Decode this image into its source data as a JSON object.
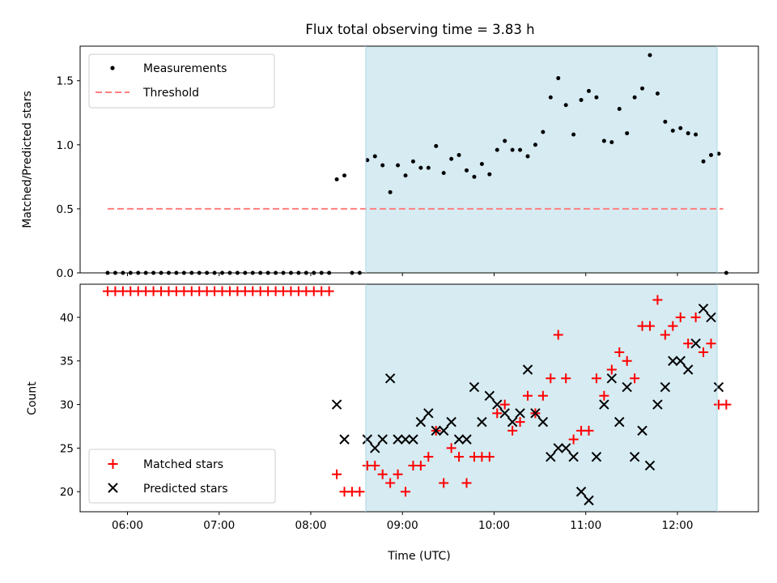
{
  "title": "Flux total observing time = 3.83 h",
  "xlabel": "Time (UTC)",
  "x_ticks": [
    "06:00",
    "07:00",
    "08:00",
    "09:00",
    "10:00",
    "11:00",
    "12:00"
  ],
  "x_tick_values": [
    6.0,
    7.0,
    8.0,
    9.0,
    10.0,
    11.0,
    12.0
  ],
  "x_range": [
    "05:29",
    "12:53"
  ],
  "shaded_interval": [
    "08:36",
    "12:26"
  ],
  "shaded_color": "#add8e6",
  "chart_data": [
    {
      "type": "scatter",
      "ylabel": "Matched/Predicted stars",
      "ylim": [
        0,
        1.77
      ],
      "y_ticks": [
        0.0,
        0.5,
        1.0,
        1.5
      ],
      "y_tick_labels": [
        "0.0",
        "0.5",
        "1.0",
        "1.5"
      ],
      "legend_position": "upper left",
      "threshold": {
        "name": "Threshold",
        "value": 0.5,
        "x_start": "05:47",
        "x_end": "12:30",
        "color": "#ff7f7f"
      },
      "series": [
        {
          "name": "Measurements",
          "marker": "dot",
          "color": "#000000",
          "points": [
            [
              "05:47",
              0
            ],
            [
              "05:52",
              0
            ],
            [
              "05:57",
              0
            ],
            [
              "06:02",
              0
            ],
            [
              "06:07",
              0
            ],
            [
              "06:12",
              0
            ],
            [
              "06:17",
              0
            ],
            [
              "06:22",
              0
            ],
            [
              "06:27",
              0
            ],
            [
              "06:32",
              0
            ],
            [
              "06:37",
              0
            ],
            [
              "06:42",
              0
            ],
            [
              "06:47",
              0
            ],
            [
              "06:52",
              0
            ],
            [
              "06:57",
              0
            ],
            [
              "07:02",
              0
            ],
            [
              "07:07",
              0
            ],
            [
              "07:12",
              0
            ],
            [
              "07:17",
              0
            ],
            [
              "07:22",
              0
            ],
            [
              "07:27",
              0
            ],
            [
              "07:32",
              0
            ],
            [
              "07:37",
              0
            ],
            [
              "07:42",
              0
            ],
            [
              "07:47",
              0
            ],
            [
              "07:52",
              0
            ],
            [
              "07:57",
              0
            ],
            [
              "08:02",
              0
            ],
            [
              "08:07",
              0
            ],
            [
              "08:12",
              0
            ],
            [
              "08:17",
              0.73
            ],
            [
              "08:22",
              0.76
            ],
            [
              "08:27",
              0
            ],
            [
              "08:32",
              0
            ],
            [
              "08:37",
              0.88
            ],
            [
              "08:42",
              0.91
            ],
            [
              "08:47",
              0.84
            ],
            [
              "08:52",
              0.63
            ],
            [
              "08:57",
              0.84
            ],
            [
              "09:02",
              0.76
            ],
            [
              "09:07",
              0.87
            ],
            [
              "09:12",
              0.82
            ],
            [
              "09:17",
              0.82
            ],
            [
              "09:22",
              0.99
            ],
            [
              "09:27",
              0.78
            ],
            [
              "09:32",
              0.89
            ],
            [
              "09:37",
              0.92
            ],
            [
              "09:42",
              0.8
            ],
            [
              "09:47",
              0.75
            ],
            [
              "09:52",
              0.85
            ],
            [
              "09:57",
              0.77
            ],
            [
              "10:02",
              0.96
            ],
            [
              "10:07",
              1.03
            ],
            [
              "10:12",
              0.96
            ],
            [
              "10:17",
              0.96
            ],
            [
              "10:22",
              0.91
            ],
            [
              "10:27",
              1.0
            ],
            [
              "10:32",
              1.1
            ],
            [
              "10:37",
              1.37
            ],
            [
              "10:42",
              1.52
            ],
            [
              "10:47",
              1.31
            ],
            [
              "10:52",
              1.08
            ],
            [
              "10:57",
              1.35
            ],
            [
              "11:02",
              1.42
            ],
            [
              "11:07",
              1.37
            ],
            [
              "11:12",
              1.03
            ],
            [
              "11:17",
              1.02
            ],
            [
              "11:22",
              1.28
            ],
            [
              "11:27",
              1.09
            ],
            [
              "11:32",
              1.37
            ],
            [
              "11:37",
              1.44
            ],
            [
              "11:42",
              1.7
            ],
            [
              "11:47",
              1.4
            ],
            [
              "11:52",
              1.18
            ],
            [
              "11:57",
              1.11
            ],
            [
              "12:02",
              1.13
            ],
            [
              "12:07",
              1.09
            ],
            [
              "12:12",
              1.08
            ],
            [
              "12:17",
              0.87
            ],
            [
              "12:22",
              0.92
            ],
            [
              "12:27",
              0.93
            ],
            [
              "12:32",
              0
            ]
          ]
        }
      ]
    },
    {
      "type": "scatter",
      "ylabel": "Count",
      "ylim": [
        17.7,
        43.8
      ],
      "y_ticks": [
        20,
        25,
        30,
        35,
        40
      ],
      "y_tick_labels": [
        "20",
        "25",
        "30",
        "35",
        "40"
      ],
      "legend_position": "lower left",
      "series": [
        {
          "name": "Matched stars",
          "marker": "plus",
          "color": "#ff0000",
          "points": [
            [
              "05:47",
              43
            ],
            [
              "05:52",
              43
            ],
            [
              "05:57",
              43
            ],
            [
              "06:02",
              43
            ],
            [
              "06:07",
              43
            ],
            [
              "06:12",
              43
            ],
            [
              "06:17",
              43
            ],
            [
              "06:22",
              43
            ],
            [
              "06:27",
              43
            ],
            [
              "06:32",
              43
            ],
            [
              "06:37",
              43
            ],
            [
              "06:42",
              43
            ],
            [
              "06:47",
              43
            ],
            [
              "06:52",
              43
            ],
            [
              "06:57",
              43
            ],
            [
              "07:02",
              43
            ],
            [
              "07:07",
              43
            ],
            [
              "07:12",
              43
            ],
            [
              "07:17",
              43
            ],
            [
              "07:22",
              43
            ],
            [
              "07:27",
              43
            ],
            [
              "07:32",
              43
            ],
            [
              "07:37",
              43
            ],
            [
              "07:42",
              43
            ],
            [
              "07:47",
              43
            ],
            [
              "07:52",
              43
            ],
            [
              "07:57",
              43
            ],
            [
              "08:02",
              43
            ],
            [
              "08:07",
              43
            ],
            [
              "08:12",
              43
            ],
            [
              "08:17",
              22
            ],
            [
              "08:22",
              20
            ],
            [
              "08:27",
              20
            ],
            [
              "08:32",
              20
            ],
            [
              "08:37",
              23
            ],
            [
              "08:42",
              23
            ],
            [
              "08:47",
              22
            ],
            [
              "08:52",
              21
            ],
            [
              "08:57",
              22
            ],
            [
              "09:02",
              20
            ],
            [
              "09:07",
              23
            ],
            [
              "09:12",
              23
            ],
            [
              "09:17",
              24
            ],
            [
              "09:22",
              27
            ],
            [
              "09:27",
              21
            ],
            [
              "09:32",
              25
            ],
            [
              "09:37",
              24
            ],
            [
              "09:42",
              21
            ],
            [
              "09:47",
              24
            ],
            [
              "09:52",
              24
            ],
            [
              "09:57",
              24
            ],
            [
              "10:02",
              29
            ],
            [
              "10:07",
              30
            ],
            [
              "10:12",
              27
            ],
            [
              "10:17",
              28
            ],
            [
              "10:22",
              31
            ],
            [
              "10:27",
              29
            ],
            [
              "10:32",
              31
            ],
            [
              "10:37",
              33
            ],
            [
              "10:42",
              38
            ],
            [
              "10:47",
              33
            ],
            [
              "10:52",
              26
            ],
            [
              "10:57",
              27
            ],
            [
              "11:02",
              27
            ],
            [
              "11:07",
              33
            ],
            [
              "11:12",
              31
            ],
            [
              "11:17",
              34
            ],
            [
              "11:22",
              36
            ],
            [
              "11:27",
              35
            ],
            [
              "11:32",
              33
            ],
            [
              "11:37",
              39
            ],
            [
              "11:42",
              39
            ],
            [
              "11:47",
              42
            ],
            [
              "11:52",
              38
            ],
            [
              "11:57",
              39
            ],
            [
              "12:02",
              40
            ],
            [
              "12:07",
              37
            ],
            [
              "12:12",
              40
            ],
            [
              "12:17",
              36
            ],
            [
              "12:22",
              37
            ],
            [
              "12:27",
              30
            ],
            [
              "12:32",
              30
            ]
          ]
        },
        {
          "name": "Predicted stars",
          "marker": "x",
          "color": "#000000",
          "points": [
            [
              "08:17",
              30
            ],
            [
              "08:22",
              26
            ],
            [
              "08:37",
              26
            ],
            [
              "08:42",
              25
            ],
            [
              "08:47",
              26
            ],
            [
              "08:52",
              33
            ],
            [
              "08:57",
              26
            ],
            [
              "09:02",
              26
            ],
            [
              "09:07",
              26
            ],
            [
              "09:12",
              28
            ],
            [
              "09:17",
              29
            ],
            [
              "09:22",
              27
            ],
            [
              "09:27",
              27
            ],
            [
              "09:32",
              28
            ],
            [
              "09:37",
              26
            ],
            [
              "09:42",
              26
            ],
            [
              "09:47",
              32
            ],
            [
              "09:52",
              28
            ],
            [
              "09:57",
              31
            ],
            [
              "10:02",
              30
            ],
            [
              "10:07",
              29
            ],
            [
              "10:12",
              28
            ],
            [
              "10:17",
              29
            ],
            [
              "10:22",
              34
            ],
            [
              "10:27",
              29
            ],
            [
              "10:32",
              28
            ],
            [
              "10:37",
              24
            ],
            [
              "10:42",
              25
            ],
            [
              "10:47",
              25
            ],
            [
              "10:52",
              24
            ],
            [
              "10:57",
              20
            ],
            [
              "11:02",
              19
            ],
            [
              "11:07",
              24
            ],
            [
              "11:12",
              30
            ],
            [
              "11:17",
              33
            ],
            [
              "11:22",
              28
            ],
            [
              "11:27",
              32
            ],
            [
              "11:32",
              24
            ],
            [
              "11:37",
              27
            ],
            [
              "11:42",
              23
            ],
            [
              "11:47",
              30
            ],
            [
              "11:52",
              32
            ],
            [
              "11:57",
              35
            ],
            [
              "12:02",
              35
            ],
            [
              "12:07",
              34
            ],
            [
              "12:12",
              37
            ],
            [
              "12:17",
              41
            ],
            [
              "12:22",
              40
            ],
            [
              "12:27",
              32
            ]
          ]
        }
      ]
    }
  ]
}
